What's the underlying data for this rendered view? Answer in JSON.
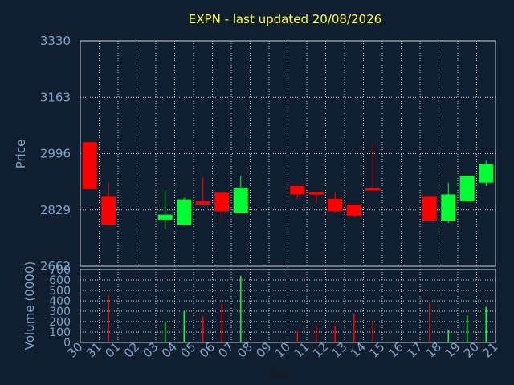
{
  "chart_data": {
    "type": "candlestick",
    "title": "EXPN - last updated 20/08/2026",
    "price_label": "Price",
    "volume_label": "Volume (0000)",
    "xlabel": "Day",
    "price_ylim": [
      2662,
      3330
    ],
    "price_ticks": [
      "3330",
      "3163",
      "2996",
      "2829",
      "2662"
    ],
    "volume_ylim": [
      0,
      700
    ],
    "volume_ticks": [
      "700",
      "600",
      "500",
      "400",
      "300",
      "200",
      "100",
      "0"
    ],
    "x_ticks": [
      "30",
      "31",
      "01",
      "02",
      "03",
      "04",
      "05",
      "06",
      "07",
      "08",
      "09",
      "10",
      "11",
      "12",
      "13",
      "14",
      "15",
      "16",
      "17",
      "18",
      "19",
      "20",
      "21"
    ],
    "grid": true,
    "colors": {
      "up": "#00ff33",
      "down": "#ff0000",
      "background": "#0f1f30",
      "grid": "#c8d2dc",
      "axis": "#7fa3c8",
      "title": "#ffff33"
    },
    "candles": [
      {
        "day": "30",
        "open": 3030,
        "high": 3030,
        "low": 2890,
        "close": 2890,
        "volume": 0
      },
      {
        "day": "31",
        "open": 2870,
        "high": 2910,
        "low": 2785,
        "close": 2785,
        "volume": 450
      },
      {
        "day": "03",
        "open": 2800,
        "high": 2888,
        "low": 2770,
        "close": 2815,
        "volume": 200
      },
      {
        "day": "04",
        "open": 2785,
        "high": 2865,
        "low": 2785,
        "close": 2860,
        "volume": 300
      },
      {
        "day": "05",
        "open": 2855,
        "high": 2925,
        "low": 2845,
        "close": 2845,
        "volume": 250
      },
      {
        "day": "06",
        "open": 2880,
        "high": 2880,
        "low": 2805,
        "close": 2825,
        "volume": 370
      },
      {
        "day": "07",
        "open": 2820,
        "high": 2930,
        "low": 2820,
        "close": 2895,
        "volume": 640
      },
      {
        "day": "10",
        "open": 2900,
        "high": 2900,
        "low": 2860,
        "close": 2875,
        "volume": 110
      },
      {
        "day": "11",
        "open": 2878,
        "high": 2882,
        "low": 2848,
        "close": 2872,
        "volume": 160
      },
      {
        "day": "12",
        "open": 2862,
        "high": 2880,
        "low": 2820,
        "close": 2825,
        "volume": 160
      },
      {
        "day": "13",
        "open": 2845,
        "high": 2845,
        "low": 2810,
        "close": 2812,
        "volume": 270
      },
      {
        "day": "14",
        "open": 2890,
        "high": 3025,
        "low": 2885,
        "close": 2887,
        "volume": 200
      },
      {
        "day": "17",
        "open": 2870,
        "high": 2870,
        "low": 2797,
        "close": 2797,
        "volume": 380
      },
      {
        "day": "18",
        "open": 2797,
        "high": 2910,
        "low": 2790,
        "close": 2875,
        "volume": 120
      },
      {
        "day": "19",
        "open": 2855,
        "high": 2930,
        "low": 2855,
        "close": 2930,
        "volume": 260
      },
      {
        "day": "20",
        "open": 2910,
        "high": 2975,
        "low": 2900,
        "close": 2965,
        "volume": 340
      }
    ]
  }
}
